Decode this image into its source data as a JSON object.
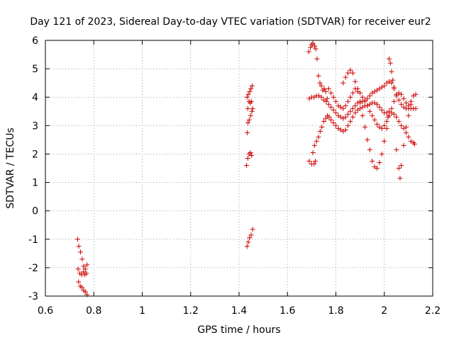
{
  "chart_data": {
    "type": "scatter",
    "title": "Day 121 of 2023, Sidereal Day-to-day VTEC variation (SDTVAR) for receiver eur2",
    "xlabel": "GPS time / hours",
    "ylabel": "SDTVAR / TECUs",
    "xlim": [
      0.6,
      2.2
    ],
    "ylim": [
      -3,
      6
    ],
    "xticks": [
      "0.6",
      "0.8",
      "1",
      "1.2",
      "1.4",
      "1.6",
      "1.8",
      "2",
      "2.2"
    ],
    "xtick_values": [
      0.6,
      0.8,
      1.0,
      1.2,
      1.4,
      1.6,
      1.8,
      2.0,
      2.2
    ],
    "yticks": [
      "-3",
      "-2",
      "-1",
      "0",
      "1",
      "2",
      "3",
      "4",
      "5",
      "6"
    ],
    "ytick_values": [
      -3,
      -2,
      -1,
      0,
      1,
      2,
      3,
      4,
      5,
      6
    ],
    "grid": true,
    "marker": "+",
    "marker_color": "#cc0000",
    "series": [
      {
        "name": "SDTVAR",
        "points": [
          [
            0.733,
            -1.0
          ],
          [
            0.738,
            -1.25
          ],
          [
            0.745,
            -1.45
          ],
          [
            0.752,
            -1.7
          ],
          [
            0.758,
            -1.95
          ],
          [
            0.765,
            -2.05
          ],
          [
            0.772,
            -1.9
          ],
          [
            0.735,
            -2.05
          ],
          [
            0.742,
            -2.2
          ],
          [
            0.75,
            -2.25
          ],
          [
            0.757,
            -2.15
          ],
          [
            0.763,
            -2.25
          ],
          [
            0.77,
            -2.2
          ],
          [
            0.737,
            -2.5
          ],
          [
            0.744,
            -2.65
          ],
          [
            0.751,
            -2.7
          ],
          [
            0.758,
            -2.8
          ],
          [
            0.765,
            -2.85
          ],
          [
            0.772,
            -2.95
          ],
          [
            1.433,
            -1.25
          ],
          [
            1.438,
            -1.1
          ],
          [
            1.443,
            -0.95
          ],
          [
            1.45,
            -0.85
          ],
          [
            1.456,
            -0.65
          ],
          [
            1.431,
            1.6
          ],
          [
            1.436,
            1.85
          ],
          [
            1.441,
            2.0
          ],
          [
            1.447,
            2.05
          ],
          [
            1.452,
            1.95
          ],
          [
            1.434,
            2.75
          ],
          [
            1.437,
            3.1
          ],
          [
            1.442,
            3.2
          ],
          [
            1.448,
            3.35
          ],
          [
            1.453,
            3.5
          ],
          [
            1.436,
            3.6
          ],
          [
            1.441,
            3.85
          ],
          [
            1.446,
            3.8
          ],
          [
            1.451,
            3.85
          ],
          [
            1.433,
            4.0
          ],
          [
            1.438,
            4.1
          ],
          [
            1.444,
            4.2
          ],
          [
            1.449,
            4.3
          ],
          [
            1.454,
            4.4
          ],
          [
            1.456,
            3.6
          ],
          [
            1.688,
            5.6
          ],
          [
            1.695,
            5.75
          ],
          [
            1.7,
            5.85
          ],
          [
            1.705,
            5.9
          ],
          [
            1.712,
            5.8
          ],
          [
            1.717,
            5.7
          ],
          [
            1.722,
            5.35
          ],
          [
            1.728,
            4.75
          ],
          [
            1.734,
            4.5
          ],
          [
            1.74,
            4.4
          ],
          [
            1.746,
            4.25
          ],
          [
            1.752,
            4.3
          ],
          [
            1.758,
            4.2
          ],
          [
            1.764,
            3.95
          ],
          [
            1.69,
            3.95
          ],
          [
            1.7,
            4.0
          ],
          [
            1.71,
            4.0
          ],
          [
            1.72,
            4.05
          ],
          [
            1.73,
            4.05
          ],
          [
            1.74,
            4.0
          ],
          [
            1.75,
            3.9
          ],
          [
            1.76,
            3.85
          ],
          [
            1.77,
            3.75
          ],
          [
            1.78,
            3.65
          ],
          [
            1.79,
            3.55
          ],
          [
            1.8,
            3.45
          ],
          [
            1.81,
            3.35
          ],
          [
            1.82,
            3.3
          ],
          [
            1.83,
            3.25
          ],
          [
            1.84,
            3.3
          ],
          [
            1.85,
            3.4
          ],
          [
            1.86,
            3.5
          ],
          [
            1.87,
            3.6
          ],
          [
            1.88,
            3.7
          ],
          [
            1.89,
            3.8
          ],
          [
            1.9,
            3.85
          ],
          [
            1.91,
            3.85
          ],
          [
            1.92,
            3.9
          ],
          [
            1.93,
            3.95
          ],
          [
            1.94,
            4.05
          ],
          [
            1.95,
            4.15
          ],
          [
            1.96,
            4.2
          ],
          [
            1.97,
            4.25
          ],
          [
            1.98,
            4.3
          ],
          [
            1.99,
            4.35
          ],
          [
            2.0,
            4.4
          ],
          [
            2.01,
            4.5
          ],
          [
            2.02,
            4.55
          ],
          [
            2.03,
            4.5
          ],
          [
            2.04,
            4.35
          ],
          [
            2.05,
            4.1
          ],
          [
            2.06,
            3.9
          ],
          [
            2.07,
            3.75
          ],
          [
            2.08,
            3.65
          ],
          [
            2.09,
            3.6
          ],
          [
            2.1,
            3.6
          ],
          [
            2.11,
            3.6
          ],
          [
            2.12,
            3.6
          ],
          [
            2.13,
            3.6
          ],
          [
            1.69,
            1.75
          ],
          [
            1.7,
            1.65
          ],
          [
            1.71,
            1.65
          ],
          [
            1.715,
            1.75
          ],
          [
            1.705,
            2.05
          ],
          [
            1.712,
            2.3
          ],
          [
            1.72,
            2.45
          ],
          [
            1.728,
            2.6
          ],
          [
            1.735,
            2.8
          ],
          [
            1.742,
            2.95
          ],
          [
            1.75,
            3.15
          ],
          [
            1.758,
            3.25
          ],
          [
            1.765,
            3.35
          ],
          [
            1.772,
            3.3
          ],
          [
            1.78,
            3.2
          ],
          [
            1.79,
            3.1
          ],
          [
            1.8,
            3.0
          ],
          [
            1.81,
            2.9
          ],
          [
            1.82,
            2.85
          ],
          [
            1.83,
            2.8
          ],
          [
            1.84,
            2.85
          ],
          [
            1.85,
            3.0
          ],
          [
            1.86,
            3.15
          ],
          [
            1.87,
            3.3
          ],
          [
            1.88,
            3.45
          ],
          [
            1.89,
            3.55
          ],
          [
            1.9,
            3.6
          ],
          [
            1.91,
            3.65
          ],
          [
            1.92,
            3.7
          ],
          [
            1.93,
            3.7
          ],
          [
            1.94,
            3.75
          ],
          [
            1.95,
            3.8
          ],
          [
            1.96,
            3.8
          ],
          [
            1.97,
            3.75
          ],
          [
            1.98,
            3.65
          ],
          [
            1.99,
            3.55
          ],
          [
            2.0,
            3.45
          ],
          [
            2.01,
            3.45
          ],
          [
            2.02,
            3.5
          ],
          [
            2.03,
            3.45
          ],
          [
            2.04,
            3.4
          ],
          [
            2.05,
            3.3
          ],
          [
            2.06,
            3.15
          ],
          [
            2.07,
            3.0
          ],
          [
            2.08,
            2.9
          ],
          [
            2.09,
            2.75
          ],
          [
            2.1,
            2.6
          ],
          [
            2.11,
            2.45
          ],
          [
            2.12,
            2.4
          ],
          [
            2.125,
            2.35
          ],
          [
            1.77,
            4.3
          ],
          [
            1.78,
            4.15
          ],
          [
            1.79,
            4.0
          ],
          [
            1.8,
            3.85
          ],
          [
            1.81,
            3.7
          ],
          [
            1.82,
            3.65
          ],
          [
            1.83,
            3.6
          ],
          [
            1.84,
            3.7
          ],
          [
            1.85,
            3.85
          ],
          [
            1.86,
            4.0
          ],
          [
            1.87,
            4.15
          ],
          [
            1.88,
            4.3
          ],
          [
            1.89,
            4.3
          ],
          [
            1.9,
            4.15
          ],
          [
            1.91,
            4.0
          ],
          [
            1.92,
            3.85
          ],
          [
            1.93,
            3.7
          ],
          [
            1.94,
            3.5
          ],
          [
            1.95,
            3.35
          ],
          [
            1.96,
            3.2
          ],
          [
            1.97,
            3.05
          ],
          [
            1.98,
            2.95
          ],
          [
            1.99,
            2.9
          ],
          [
            2.0,
            3.0
          ],
          [
            2.01,
            3.15
          ],
          [
            2.02,
            3.35
          ],
          [
            2.03,
            3.6
          ],
          [
            2.04,
            3.85
          ],
          [
            2.05,
            4.05
          ],
          [
            2.06,
            4.15
          ],
          [
            2.07,
            4.1
          ],
          [
            2.08,
            3.95
          ],
          [
            2.09,
            3.8
          ],
          [
            2.1,
            3.7
          ],
          [
            2.11,
            3.75
          ],
          [
            1.83,
            4.5
          ],
          [
            1.84,
            4.7
          ],
          [
            1.85,
            4.85
          ],
          [
            1.86,
            4.95
          ],
          [
            1.87,
            4.85
          ],
          [
            1.88,
            4.55
          ],
          [
            1.89,
            4.2
          ],
          [
            1.9,
            3.8
          ],
          [
            1.91,
            3.35
          ],
          [
            1.92,
            2.95
          ],
          [
            1.93,
            2.5
          ],
          [
            1.94,
            2.15
          ],
          [
            1.95,
            1.75
          ],
          [
            1.96,
            1.55
          ],
          [
            1.97,
            1.5
          ],
          [
            1.98,
            1.7
          ],
          [
            1.99,
            2.0
          ],
          [
            2.0,
            2.45
          ],
          [
            2.01,
            2.9
          ],
          [
            2.015,
            3.3
          ],
          [
            2.02,
            5.35
          ],
          [
            2.025,
            5.2
          ],
          [
            2.03,
            4.9
          ],
          [
            2.035,
            4.6
          ],
          [
            2.04,
            4.3
          ],
          [
            2.05,
            2.15
          ],
          [
            2.06,
            1.5
          ],
          [
            2.065,
            1.15
          ],
          [
            2.07,
            1.6
          ],
          [
            2.08,
            2.3
          ],
          [
            2.09,
            2.95
          ],
          [
            2.1,
            3.35
          ],
          [
            2.11,
            3.85
          ],
          [
            2.12,
            4.05
          ],
          [
            2.13,
            4.1
          ]
        ]
      }
    ]
  }
}
